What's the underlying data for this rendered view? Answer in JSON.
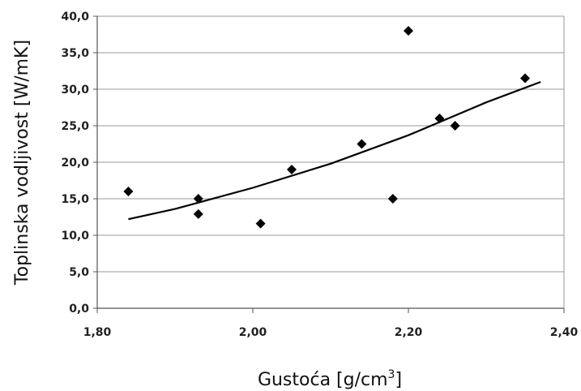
{
  "chart_data": {
    "type": "scatter",
    "title": "",
    "xlabel": "Gustoća [g/cm",
    "xlabel_sup": "3",
    "xlabel_suffix": "]",
    "ylabel": "Toplinska vodljivost [W/mK]",
    "xlim": [
      1.8,
      2.4
    ],
    "ylim": [
      0,
      40
    ],
    "x_ticks": [
      {
        "value": 1.8,
        "label": "1,80"
      },
      {
        "value": 2.0,
        "label": "2,00"
      },
      {
        "value": 2.2,
        "label": "2,20"
      },
      {
        "value": 2.4,
        "label": "2,40"
      }
    ],
    "y_ticks": [
      {
        "value": 0,
        "label": "0,0"
      },
      {
        "value": 5,
        "label": "5,0"
      },
      {
        "value": 10,
        "label": "10,0"
      },
      {
        "value": 15,
        "label": "15,0"
      },
      {
        "value": 20,
        "label": "20,0"
      },
      {
        "value": 25,
        "label": "25,0"
      },
      {
        "value": 30,
        "label": "30,0"
      },
      {
        "value": 35,
        "label": "35,0"
      },
      {
        "value": 40,
        "label": "40,0"
      }
    ],
    "grid": "horizontal",
    "marker_color": "#000000",
    "series": [
      {
        "points": [
          {
            "x": 1.84,
            "y": 16.0
          },
          {
            "x": 1.93,
            "y": 15.0
          },
          {
            "x": 1.93,
            "y": 12.9
          },
          {
            "x": 2.01,
            "y": 11.6
          },
          {
            "x": 2.05,
            "y": 19.0
          },
          {
            "x": 2.14,
            "y": 22.5
          },
          {
            "x": 2.18,
            "y": 15.0
          },
          {
            "x": 2.2,
            "y": 38.0
          },
          {
            "x": 2.24,
            "y": 26.0
          },
          {
            "x": 2.26,
            "y": 25.0
          },
          {
            "x": 2.35,
            "y": 31.5
          }
        ]
      }
    ],
    "trendline": {
      "type": "exponential",
      "points": [
        {
          "x": 1.84,
          "y": 12.2
        },
        {
          "x": 1.9,
          "y": 13.6
        },
        {
          "x": 2.0,
          "y": 16.5
        },
        {
          "x": 2.1,
          "y": 19.8
        },
        {
          "x": 2.2,
          "y": 23.7
        },
        {
          "x": 2.3,
          "y": 28.2
        },
        {
          "x": 2.37,
          "y": 31.0
        }
      ]
    }
  }
}
